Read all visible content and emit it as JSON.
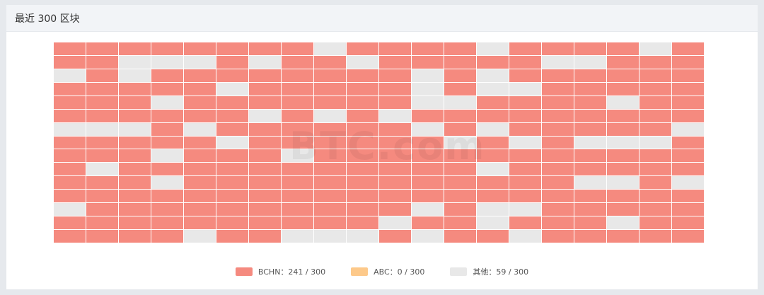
{
  "header": {
    "title": "最近 300 区块"
  },
  "watermark": "BTC.com",
  "chart_data": {
    "type": "heatmap",
    "title": "最近 300 区块",
    "columns": 20,
    "rows": 15,
    "legend": [
      {
        "key": "B",
        "label": "BCHN：241 / 300",
        "color": "#f58a7f"
      },
      {
        "key": "A",
        "label": "ABC：0 / 300",
        "color": "#fdc98a"
      },
      {
        "key": "O",
        "label": "其他：59 / 300",
        "color": "#e8e8e8"
      }
    ],
    "grid": [
      "BBBBBBBBOBBBBOBBBBOB",
      "BBOOOBOBBOBBBBBOOBBB",
      "OBOBBBBBBBBOBOBBBBBB",
      "BBBBBOBBBBBOBOOBBBBB",
      "BBBOBBBBBBBOOBBBBOBB",
      "BBBBBBOBOBOBBBBBBBBB",
      "OOOBOBBBBBBOBOBBBBBO",
      "BBBBBOBBBBBBOBOBOOOB",
      "BBBOBBBOBBBBBBBBBBBB",
      "BOBBBBBBBBBBBOBBBBBB",
      "BBBOBBBBBBBBBBBBOOBO",
      "BBBBBBBBBBBBBBBBBBBB",
      "OBBBBBBBBBBOBOOBBBBB",
      "BBBBBBBBBBOBBOBBBOBB",
      "BBBBOBBOOOBOBBOBBBBB"
    ],
    "legend_placement": "bottom"
  }
}
